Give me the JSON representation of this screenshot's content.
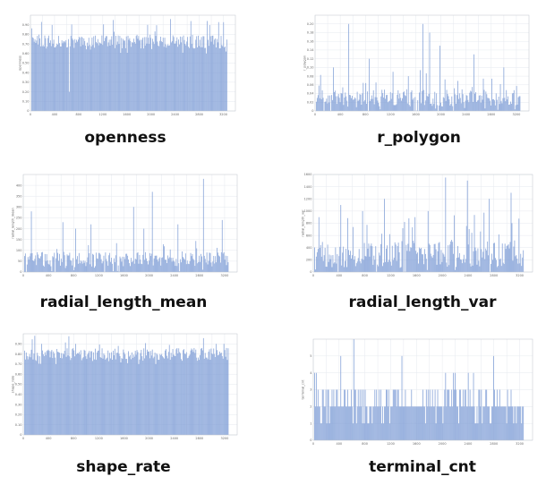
{
  "colors": {
    "bar": "#7f9ed6",
    "grid": "#e6e9ef",
    "axis": "#bfc4cc"
  },
  "chart_data": [
    {
      "type": "bar",
      "title": "openness",
      "ylabel": "openness",
      "x_range": [
        0,
        3400
      ],
      "x_ticks": [
        0,
        200,
        400,
        600,
        800,
        1000,
        1200,
        1400,
        1600,
        1800,
        2000,
        2200,
        2400,
        2600,
        2800,
        3000,
        3200
      ],
      "ylim": [
        0,
        1.0
      ],
      "y_ticks": [
        0.0,
        0.1,
        0.2,
        0.3,
        0.4,
        0.5,
        0.6,
        0.7,
        0.8,
        0.9
      ],
      "grid": true,
      "n_bars": 240,
      "base": 0.72,
      "variation": 0.07,
      "floor_value": 0.6,
      "spikes": [
        [
          46,
          0.2
        ],
        [
          12,
          0.93
        ],
        [
          100,
          0.95
        ],
        [
          170,
          0.96
        ],
        [
          215,
          0.94
        ]
      ]
    },
    {
      "type": "bar",
      "title": "r_polygon",
      "ylabel": "r_polygon",
      "x_range": [
        0,
        3400
      ],
      "x_ticks": [
        0,
        200,
        400,
        600,
        800,
        1000,
        1200,
        1400,
        1600,
        1800,
        2000,
        2200,
        2400,
        2600,
        2800,
        3000,
        3200
      ],
      "ylim": [
        0,
        0.22
      ],
      "y_ticks": [
        0.0,
        0.02,
        0.04,
        0.06,
        0.08,
        0.1,
        0.12,
        0.14,
        0.16,
        0.18,
        0.2
      ],
      "grid": true,
      "n_bars": 240,
      "base": 0.03,
      "variation": 0.02,
      "floor_value": 0.0,
      "spikes": [
        [
          38,
          0.2
        ],
        [
          125,
          0.2
        ],
        [
          133,
          0.18
        ],
        [
          20,
          0.1
        ],
        [
          62,
          0.12
        ],
        [
          145,
          0.15
        ],
        [
          185,
          0.13
        ],
        [
          220,
          0.1
        ],
        [
          90,
          0.09
        ]
      ]
    },
    {
      "type": "bar",
      "title": "radial_length_mean",
      "ylabel": "radial_length_mean",
      "x_range": [
        0,
        3400
      ],
      "x_ticks": [
        0,
        200,
        400,
        600,
        800,
        1000,
        1200,
        1400,
        1600,
        1800,
        2000,
        2200,
        2400,
        2600,
        2800,
        3000,
        3200
      ],
      "ylim": [
        0,
        450
      ],
      "y_ticks": [
        0,
        50,
        100,
        150,
        200,
        250,
        300,
        350,
        400
      ],
      "grid": true,
      "n_bars": 240,
      "base": 60,
      "variation": 35,
      "floor_value": 0,
      "spikes": [
        [
          8,
          280
        ],
        [
          45,
          230
        ],
        [
          78,
          220
        ],
        [
          128,
          300
        ],
        [
          150,
          370
        ],
        [
          180,
          220
        ],
        [
          210,
          430
        ],
        [
          232,
          240
        ],
        [
          140,
          200
        ],
        [
          60,
          200
        ]
      ]
    },
    {
      "type": "bar",
      "title": "radial_length_var",
      "ylabel": "radial_length_var",
      "x_range": [
        0,
        3400
      ],
      "x_ticks": [
        0,
        200,
        400,
        600,
        800,
        1000,
        1200,
        1400,
        1600,
        1800,
        2000,
        2200,
        2400,
        2600,
        2800,
        3000,
        3200
      ],
      "ylim": [
        0,
        1600
      ],
      "y_ticks": [
        0,
        200,
        400,
        600,
        800,
        1000,
        1200,
        1400,
        1600
      ],
      "grid": true,
      "n_bars": 240,
      "base": 300,
      "variation": 220,
      "floor_value": 0,
      "spikes": [
        [
          5,
          900
        ],
        [
          30,
          1100
        ],
        [
          55,
          1000
        ],
        [
          80,
          1200
        ],
        [
          115,
          900
        ],
        [
          150,
          1550
        ],
        [
          175,
          1500
        ],
        [
          200,
          1200
        ],
        [
          225,
          1300
        ],
        [
          130,
          1000
        ]
      ]
    },
    {
      "type": "bar",
      "title": "shape_rate",
      "ylabel": "shape_rate",
      "x_range": [
        0,
        3400
      ],
      "x_ticks": [
        0,
        200,
        400,
        600,
        800,
        1000,
        1200,
        1400,
        1600,
        1800,
        2000,
        2200,
        2400,
        2600,
        2800,
        3000,
        3200
      ],
      "ylim": [
        0,
        1.0
      ],
      "y_ticks": [
        0.0,
        0.1,
        0.2,
        0.3,
        0.4,
        0.5,
        0.6,
        0.7,
        0.8,
        0.9
      ],
      "grid": true,
      "n_bars": 240,
      "base": 0.8,
      "variation": 0.06,
      "floor_value": 0.7,
      "spikes": [
        [
          20,
          0.9
        ],
        [
          60,
          0.9
        ],
        [
          110,
          0.88
        ],
        [
          170,
          0.89
        ],
        [
          225,
          0.9
        ]
      ]
    },
    {
      "type": "bar",
      "title": "terminal_cnt",
      "ylabel": "terminal_cnt",
      "x_range": [
        0,
        3400
      ],
      "x_ticks": [
        0,
        200,
        400,
        600,
        800,
        1000,
        1200,
        1400,
        1600,
        1800,
        2000,
        2200,
        2400,
        2600,
        2800,
        3000,
        3200
      ],
      "ylim": [
        0,
        6
      ],
      "y_ticks": [
        0,
        1,
        2,
        3,
        4,
        5
      ],
      "grid": true,
      "n_bars": 240,
      "levels": [
        1,
        2,
        3,
        4
      ],
      "pattern_seed": 7,
      "spikes": [
        [
          45,
          6
        ],
        [
          30,
          5
        ],
        [
          100,
          5
        ],
        [
          205,
          5
        ],
        [
          150,
          4
        ]
      ]
    }
  ]
}
